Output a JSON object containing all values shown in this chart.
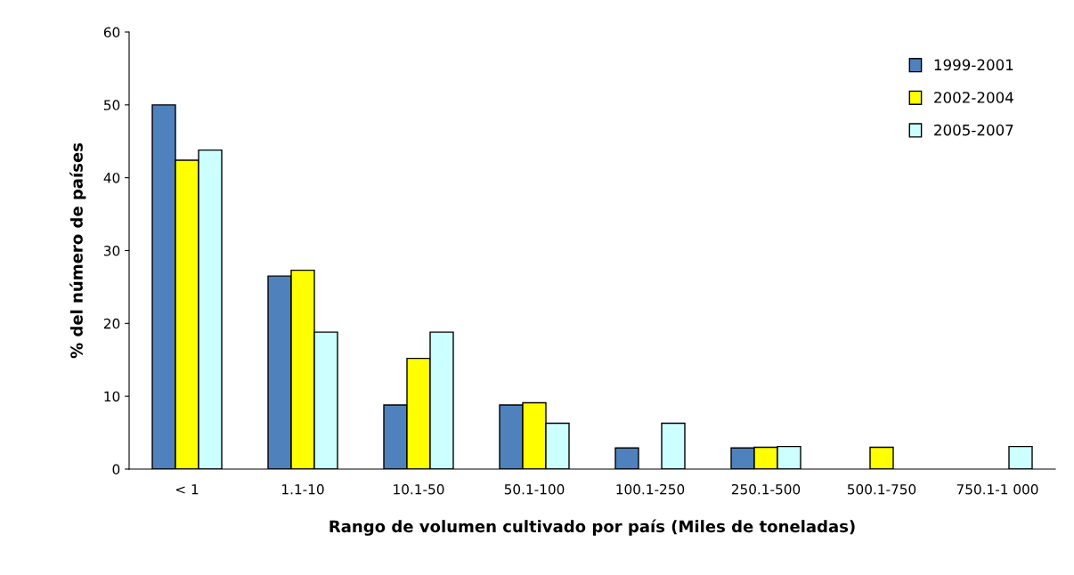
{
  "chart_data": {
    "type": "bar",
    "xlabel": "Rango de volumen cultivado por país (Miles de toneladas)",
    "ylabel": "% del número de países",
    "categories": [
      "< 1",
      "1.1-10",
      "10.1-50",
      "50.1-100",
      "100.1-250",
      "250.1-500",
      "500.1-750",
      "750.1-1 000"
    ],
    "series": [
      {
        "name": "1999-2001",
        "color": "#4f81bd",
        "values": [
          50,
          26.5,
          8.8,
          8.8,
          2.9,
          2.9,
          null,
          null
        ]
      },
      {
        "name": "2002-2004",
        "color": "#ffff00",
        "values": [
          42.4,
          27.3,
          15.2,
          9.1,
          null,
          3.0,
          3.0,
          null
        ]
      },
      {
        "name": "2005-2007",
        "color": "#ccffff",
        "values": [
          43.8,
          18.8,
          18.8,
          6.3,
          6.3,
          3.1,
          null,
          3.1
        ]
      }
    ],
    "ylim": [
      0,
      60
    ],
    "yticks": [
      0,
      10,
      20,
      30,
      40,
      50,
      60
    ],
    "grid": false,
    "legend": "top right"
  }
}
